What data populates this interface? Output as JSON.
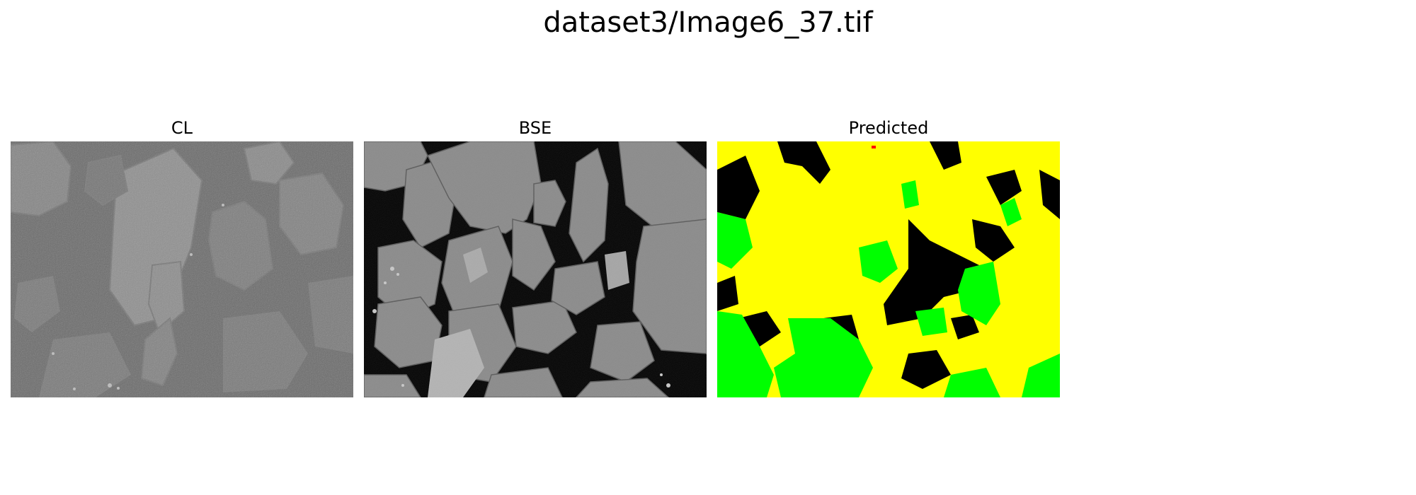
{
  "figure": {
    "title": "dataset3/Image6_37.tif"
  },
  "panels": [
    {
      "title": "CL"
    },
    {
      "title": "BSE"
    },
    {
      "title": "Predicted"
    }
  ],
  "colors": {
    "background": "#ffffff",
    "cl_matrix": "#6e6e6e",
    "cl_grain": "#8c8c8c",
    "bse_pore": "#000000",
    "bse_grain": "#8a8a8a",
    "predicted_yellow": "#ffff00",
    "predicted_green": "#00ff00",
    "predicted_black": "#000000",
    "predicted_red": "#ff0000"
  }
}
